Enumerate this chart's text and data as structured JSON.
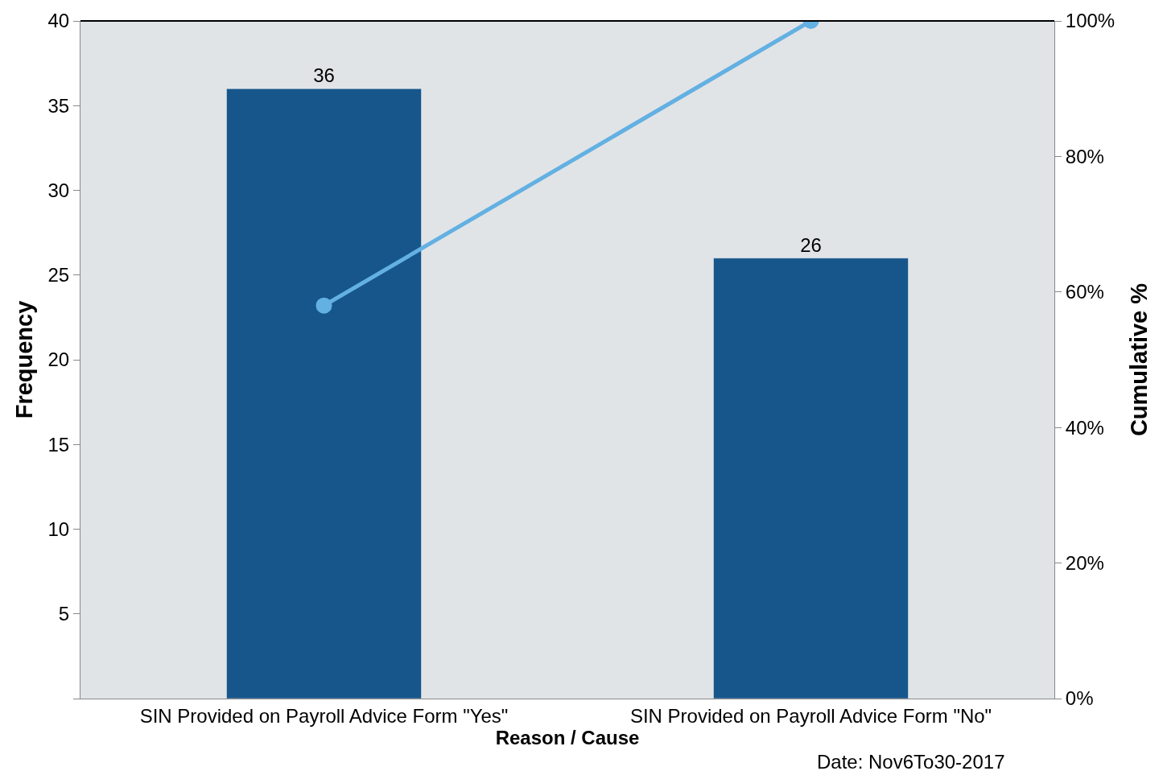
{
  "chart_data": {
    "type": "bar",
    "xlabel": "Reason / Cause",
    "ylabel": "Frequency",
    "y2label": "Cumulative %",
    "categories": [
      "SIN Provided on Payroll Advice Form \"Yes\"",
      "SIN Provided on Payroll Advice Form \"No\""
    ],
    "series": [
      {
        "color": "#17568a",
        "values": [
          36,
          26
        ],
        "value_labels": [
          "36",
          "26"
        ]
      },
      {
        "type": "line",
        "axis": "y2",
        "color": "#63b0e3",
        "values": [
          58,
          100
        ],
        "marker": "circle",
        "line_style": "solid"
      }
    ],
    "ylim": [
      0,
      40
    ],
    "yticks": [
      {
        "value": 0,
        "label": null
      },
      5,
      10,
      15,
      20,
      25,
      30,
      35,
      40
    ],
    "y2lim": [
      0,
      100
    ],
    "y2ticks": [
      {
        "value": 0,
        "label": "0%"
      },
      {
        "value": 20,
        "label": "20%"
      },
      {
        "value": 40,
        "label": "40%"
      },
      {
        "value": 60,
        "label": "60%"
      },
      {
        "value": 80,
        "label": "80%"
      },
      {
        "value": 100,
        "label": "100%"
      }
    ],
    "legend": false,
    "annotations": [
      "Date: Nov6To30-2017"
    ]
  }
}
